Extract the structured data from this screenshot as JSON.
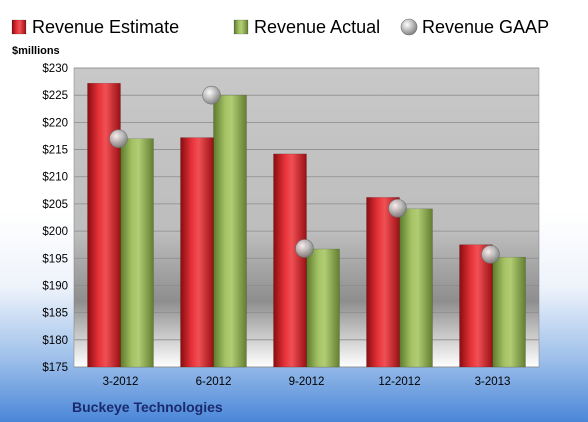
{
  "chart_data": {
    "type": "bar",
    "ylabel": "$millions",
    "ylim": [
      175,
      230
    ],
    "ytick_step": 5,
    "ytick_prefix": "$",
    "categories": [
      "3-2012",
      "6-2012",
      "9-2012",
      "12-2012",
      "3-2013"
    ],
    "series": [
      {
        "name": "Revenue Estimate",
        "kind": "bar",
        "color": "#e0202a",
        "values": [
          227.2,
          217.2,
          214.2,
          206.2,
          197.5
        ]
      },
      {
        "name": "Revenue Actual",
        "kind": "bar",
        "color": "#9ab85a",
        "values": [
          217.0,
          225.0,
          196.7,
          204.1,
          195.2
        ]
      },
      {
        "name": "Revenue GAAP",
        "kind": "marker",
        "color": "#b0b0b0",
        "values": [
          217.0,
          225.0,
          196.8,
          204.2,
          195.7
        ]
      }
    ],
    "legend": "top",
    "grid": true,
    "company": "Buckeye Technologies"
  }
}
